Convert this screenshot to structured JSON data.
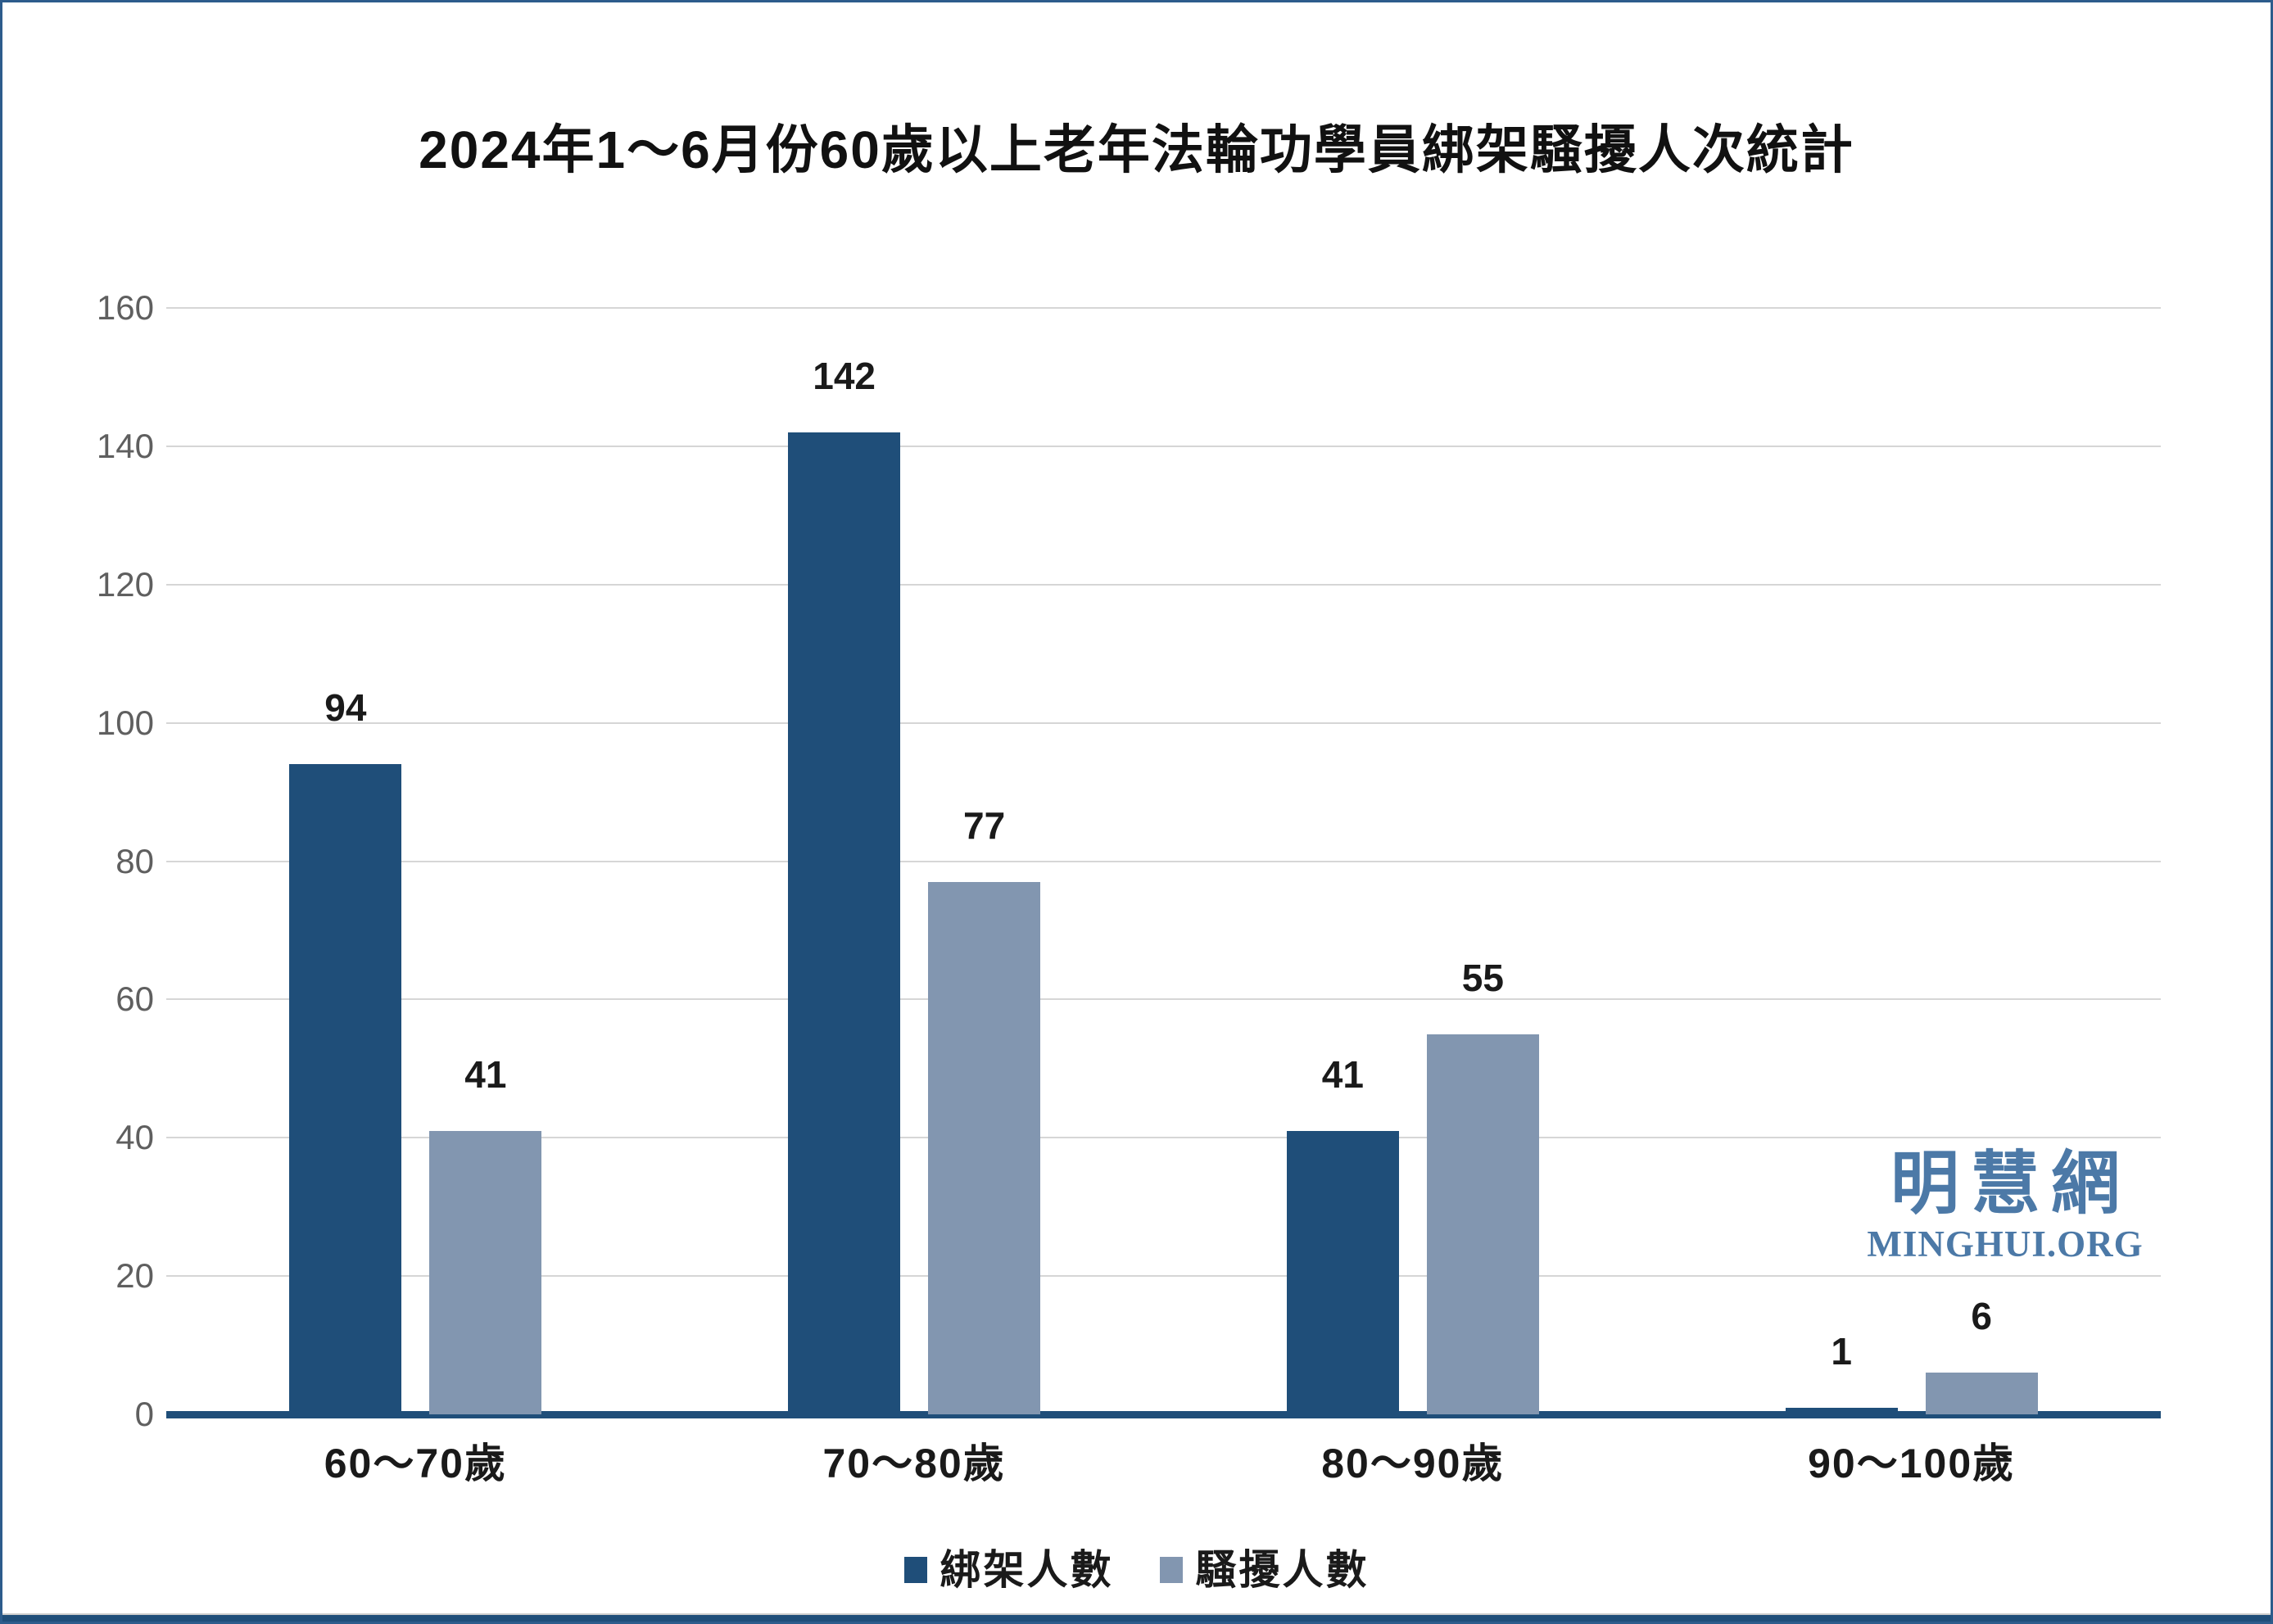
{
  "page": {
    "background": "#FFFFFF",
    "border_color": "#2d5c8c",
    "bottom_strip_color": "#1F4E79"
  },
  "chart_data": {
    "type": "bar",
    "title": "2024年1～6月份60歲以上老年法輪功學員綁架騷擾人次統計",
    "categories": [
      "60～70歲",
      "70～80歲",
      "80～90歲",
      "90～100歲"
    ],
    "series": [
      {
        "name": "綁架人數",
        "color": "#1F4E79",
        "values": [
          94,
          142,
          41,
          1
        ]
      },
      {
        "name": "騷擾人數",
        "color": "#8296B0",
        "values": [
          41,
          77,
          55,
          6
        ]
      }
    ],
    "ylim": [
      0,
      160
    ],
    "yticks": [
      0,
      20,
      40,
      60,
      80,
      100,
      120,
      140,
      160
    ],
    "grid": true,
    "gridline_color": "#d6d6d6",
    "axis_line_color": "#1F4E79",
    "tick_label_color": "#5f5f5f",
    "value_labels": true,
    "legend_position": "bottom",
    "xlabel": "",
    "ylabel": ""
  },
  "watermark": {
    "cn": "明慧網",
    "en": "MINGHUI.ORG",
    "color": "#4C79A7"
  }
}
